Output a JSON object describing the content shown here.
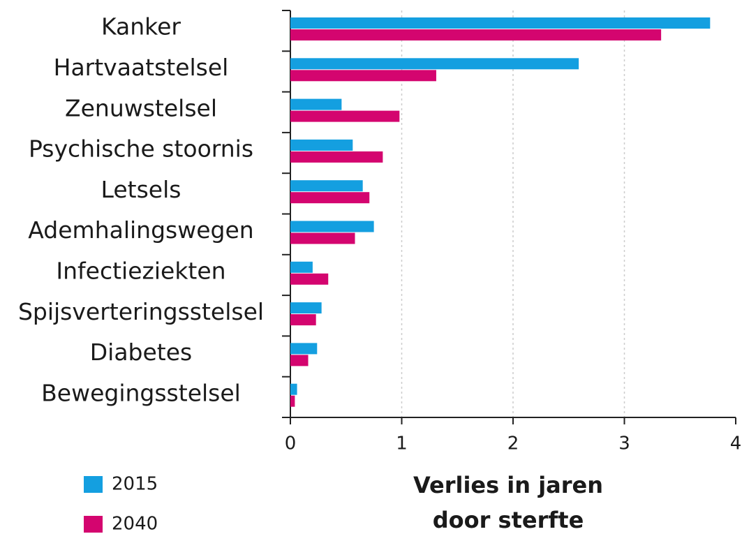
{
  "chart_data": {
    "type": "hbar",
    "categories": [
      "Kanker",
      "Hartvaatstelsel",
      "Zenuwstelsel",
      "Psychische stoornis",
      "Letsels",
      "Ademhalingswegen",
      "Infectieziekten",
      "Spijsverteringsstelsel",
      "Diabetes",
      "Bewegingsstelsel"
    ],
    "series": [
      {
        "name": "2015",
        "color": "#149fe0",
        "values": [
          3.77,
          2.59,
          0.46,
          0.56,
          0.65,
          0.75,
          0.2,
          0.28,
          0.24,
          0.06
        ]
      },
      {
        "name": "2040",
        "color": "#d4056f",
        "values": [
          3.33,
          1.31,
          0.98,
          0.83,
          0.71,
          0.58,
          0.34,
          0.23,
          0.16,
          0.04
        ]
      }
    ],
    "xlabel": [
      "Verlies in jaren",
      "door sterfte"
    ],
    "xlim": [
      0,
      4
    ],
    "xticks": [
      0,
      1,
      2,
      3,
      4
    ],
    "grid": true
  }
}
